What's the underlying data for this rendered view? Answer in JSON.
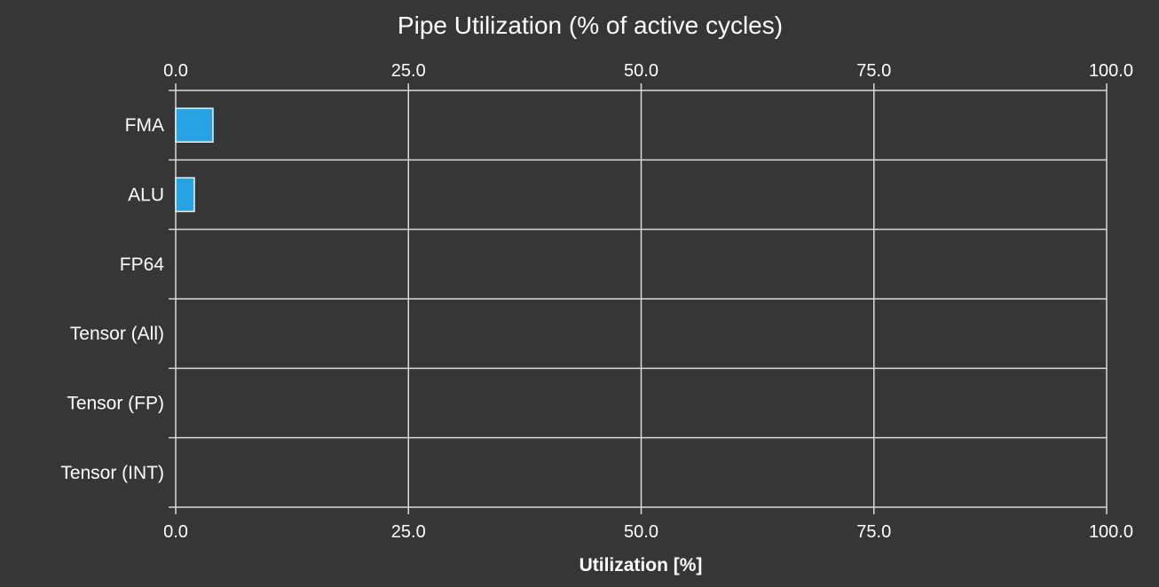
{
  "chart_data": {
    "type": "bar",
    "orientation": "horizontal",
    "title": "Pipe Utilization (% of active cycles)",
    "xlabel": "Utilization [%]",
    "categories": [
      "FMA",
      "ALU",
      "FP64",
      "Tensor (All)",
      "Tensor (FP)",
      "Tensor (INT)"
    ],
    "values": [
      4.0,
      2.0,
      0,
      0,
      0,
      0
    ],
    "xlim": [
      0,
      100
    ],
    "ticks": [
      0,
      25,
      50,
      75,
      100
    ],
    "tick_labels": [
      "0.0",
      "25.0",
      "50.0",
      "75.0",
      "100.0"
    ],
    "grid": true,
    "colors": {
      "background": "#363636",
      "grid": "#d9d9d9",
      "bar_fill": "#27a3e3",
      "bar_stroke": "#e8f4fb",
      "text": "#ffffff"
    }
  }
}
